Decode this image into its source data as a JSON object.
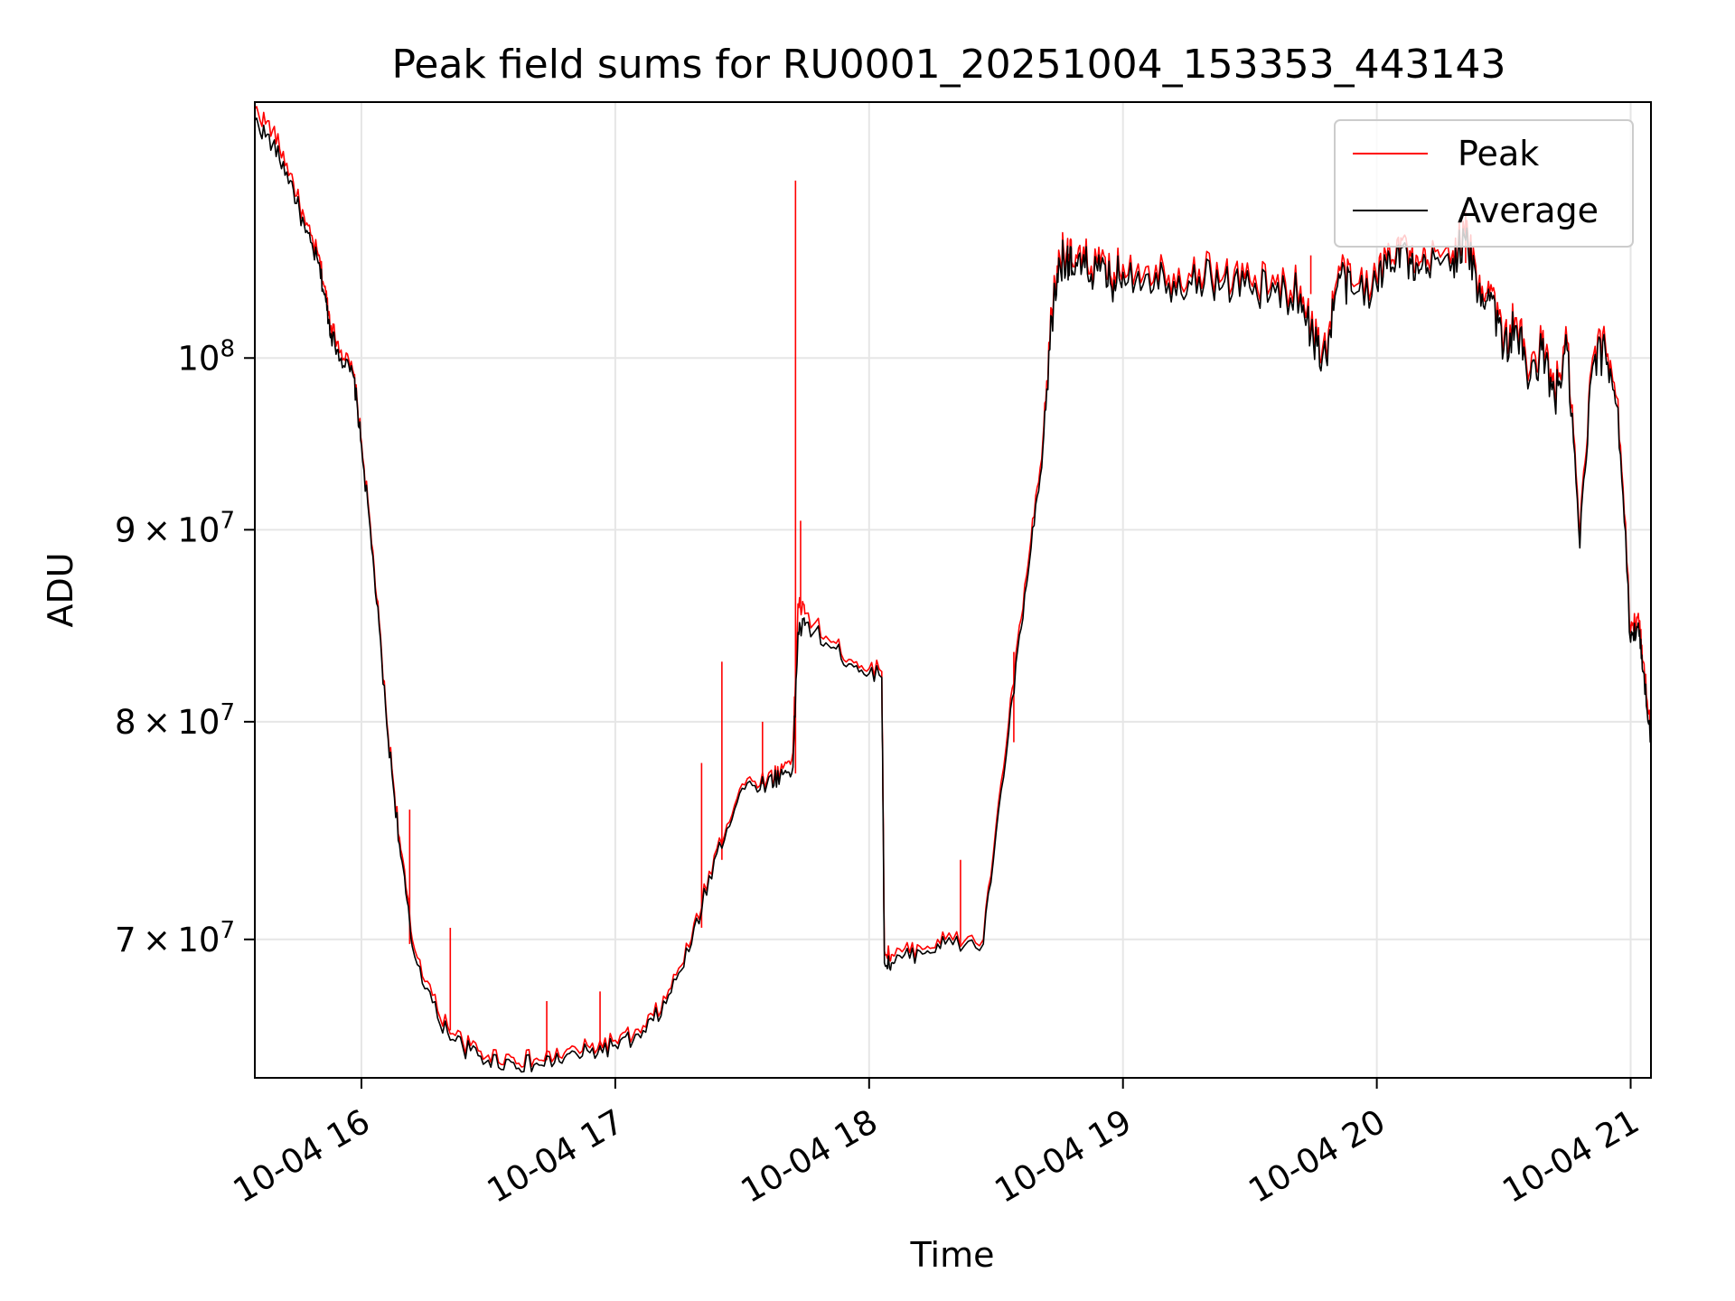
{
  "chart_data": {
    "type": "line",
    "title": "Peak field sums for RU0001_20251004_153353_443143",
    "xlabel": "Time",
    "ylabel": "ADU",
    "y_scale": "log",
    "xlim": [
      15.58,
      21.08
    ],
    "ylim": [
      64300000,
      117000000
    ],
    "x_unit": "hour of day, 2025-10-04",
    "grid": true,
    "legend_position": "top-right",
    "x_ticks": [
      {
        "value": 16,
        "label": "10-04 16"
      },
      {
        "value": 17,
        "label": "10-04 17"
      },
      {
        "value": 18,
        "label": "10-04 18"
      },
      {
        "value": 19,
        "label": "10-04 19"
      },
      {
        "value": 20,
        "label": "10-04 20"
      },
      {
        "value": 21,
        "label": "10-04 21"
      }
    ],
    "y_ticks": [
      {
        "value": 70000000,
        "mantissa": "7",
        "base": "10",
        "exp": "7",
        "times": "×"
      },
      {
        "value": 80000000,
        "mantissa": "8",
        "base": "10",
        "exp": "7",
        "times": "×"
      },
      {
        "value": 90000000,
        "mantissa": "9",
        "base": "10",
        "exp": "7",
        "times": "×"
      },
      {
        "value": 100000000,
        "mantissa": "",
        "base": "10",
        "exp": "8",
        "times": ""
      }
    ],
    "series": [
      {
        "name": "Peak",
        "color": "#ff0000",
        "x": [
          15.58,
          15.65,
          15.72,
          15.78,
          15.83,
          15.86,
          15.88,
          15.92,
          15.97,
          16.0,
          16.05,
          16.1,
          16.15,
          16.2,
          16.3,
          16.4,
          16.5,
          16.6,
          16.7,
          16.8,
          16.9,
          17.0,
          17.1,
          17.2,
          17.3,
          17.4,
          17.5,
          17.6,
          17.65,
          17.7,
          17.72,
          17.75,
          17.85,
          17.95,
          18.05,
          18.06,
          18.1,
          18.2,
          18.3,
          18.45,
          18.55,
          18.62,
          18.68,
          18.72,
          18.75,
          18.78,
          18.8,
          18.85,
          18.9,
          18.95,
          19.0,
          19.1,
          19.2,
          19.3,
          19.4,
          19.5,
          19.6,
          19.7,
          19.75,
          19.8,
          19.85,
          19.9,
          20.0,
          20.05,
          20.1,
          20.15,
          20.2,
          20.3,
          20.35,
          20.4,
          20.45,
          20.5,
          20.55,
          20.6,
          20.65,
          20.7,
          20.75,
          20.8,
          20.85,
          20.9,
          20.95,
          21.0,
          21.03,
          21.05,
          21.08
        ],
        "y": [
          116500000,
          115000000,
          112000000,
          108500000,
          106500000,
          104000000,
          102000000,
          100500000,
          99000000,
          95000000,
          88000000,
          80000000,
          74500000,
          70000000,
          67000000,
          65700000,
          65200000,
          65100000,
          65000000,
          65300000,
          65500000,
          65800000,
          66100000,
          67500000,
          70000000,
          74000000,
          77000000,
          77300000,
          77600000,
          78500000,
          86000000,
          85500000,
          84000000,
          83000000,
          82500000,
          69500000,
          69300000,
          69700000,
          70000000,
          70000000,
          80000000,
          87500000,
          94000000,
          103000000,
          106500000,
          107000000,
          106000000,
          106200000,
          106000000,
          105200000,
          105900000,
          105800000,
          105300000,
          105600000,
          105300000,
          104900000,
          104600000,
          104500000,
          101500000,
          100500000,
          105800000,
          104700000,
          105000000,
          107000000,
          107500000,
          105400000,
          106200000,
          106800000,
          108000000,
          104500000,
          104600000,
          101000000,
          102500000,
          99000000,
          101000000,
          98000000,
          101000000,
          89500000,
          100000000,
          101000000,
          97500000,
          84500000,
          85500000,
          83000000,
          79500000
        ]
      },
      {
        "name": "Average",
        "color": "#000000",
        "x": [
          15.58,
          15.65,
          15.72,
          15.78,
          15.83,
          15.86,
          15.88,
          15.92,
          15.97,
          16.0,
          16.05,
          16.1,
          16.15,
          16.2,
          16.3,
          16.4,
          16.5,
          16.6,
          16.7,
          16.8,
          16.9,
          17.0,
          17.1,
          17.2,
          17.3,
          17.4,
          17.5,
          17.6,
          17.65,
          17.7,
          17.72,
          17.75,
          17.85,
          17.95,
          18.05,
          18.06,
          18.1,
          18.2,
          18.3,
          18.45,
          18.55,
          18.62,
          18.68,
          18.72,
          18.75,
          18.78,
          18.8,
          18.85,
          18.9,
          18.95,
          19.0,
          19.1,
          19.2,
          19.3,
          19.4,
          19.5,
          19.6,
          19.7,
          19.75,
          19.8,
          19.85,
          19.9,
          20.0,
          20.05,
          20.1,
          20.15,
          20.2,
          20.3,
          20.35,
          20.4,
          20.45,
          20.5,
          20.55,
          20.6,
          20.65,
          20.7,
          20.75,
          20.8,
          20.85,
          20.9,
          20.95,
          21.0,
          21.03,
          21.05,
          21.08
        ],
        "y": [
          115700000,
          114000000,
          111500000,
          108000000,
          106000000,
          103500000,
          101500000,
          100000000,
          98800000,
          94800000,
          87700000,
          79800000,
          74200000,
          69700000,
          66700000,
          65500000,
          65000000,
          64900000,
          64800000,
          65100000,
          65300000,
          65600000,
          65900000,
          67300000,
          69800000,
          73800000,
          76800000,
          77100000,
          77400000,
          77800000,
          84500000,
          85000000,
          83700000,
          82800000,
          82200000,
          69000000,
          69000000,
          69500000,
          69800000,
          69800000,
          79500000,
          87000000,
          93500000,
          102500000,
          106000000,
          106500000,
          105500000,
          105700000,
          105500000,
          104700000,
          105400000,
          105300000,
          104800000,
          105100000,
          104800000,
          104400000,
          104100000,
          104000000,
          101000000,
          100000000,
          105300000,
          104200000,
          104500000,
          106500000,
          107000000,
          104900000,
          105700000,
          106300000,
          107500000,
          104000000,
          104100000,
          100500000,
          102000000,
          98500000,
          100500000,
          97500000,
          100500000,
          89000000,
          99500000,
          100500000,
          97000000,
          84000000,
          85000000,
          82500000,
          79000000
        ]
      }
    ]
  }
}
